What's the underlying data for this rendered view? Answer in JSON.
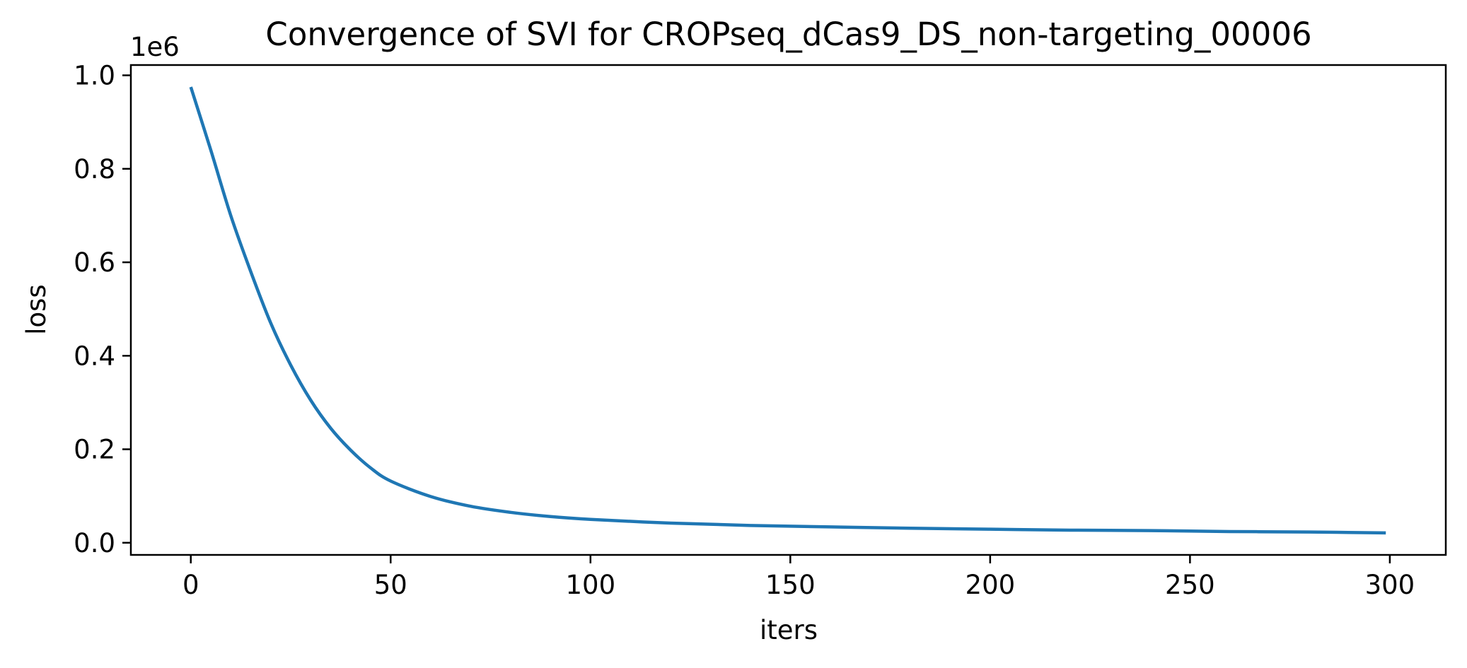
{
  "chart_data": {
    "type": "line",
    "title": "Convergence of SVI for CROPseq_dCas9_DS_non-targeting_00006",
    "xlabel": "iters",
    "ylabel": "loss",
    "y_offset_label": "1e6",
    "xlim": [
      -15,
      314
    ],
    "ylim": [
      -0.026,
      1.022
    ],
    "x_ticks": [
      0,
      50,
      100,
      150,
      200,
      250,
      300
    ],
    "x_tick_labels": [
      "0",
      "50",
      "100",
      "150",
      "200",
      "250",
      "300"
    ],
    "y_ticks": [
      0.0,
      0.2,
      0.4,
      0.6,
      0.8,
      1.0
    ],
    "y_tick_labels": [
      "0.0",
      "0.2",
      "0.4",
      "0.6",
      "0.8",
      "1.0"
    ],
    "grid": false,
    "series_color": "#1f77b4",
    "series": [
      {
        "x": [
          0,
          5,
          10,
          15,
          20,
          25,
          30,
          35,
          40,
          45,
          50,
          60,
          70,
          80,
          90,
          100,
          120,
          140,
          160,
          180,
          200,
          220,
          240,
          260,
          280,
          299
        ],
        "values": [
          0.975,
          0.84,
          0.7,
          0.58,
          0.47,
          0.38,
          0.305,
          0.245,
          0.198,
          0.16,
          0.132,
          0.099,
          0.078,
          0.065,
          0.056,
          0.05,
          0.042,
          0.037,
          0.034,
          0.031,
          0.029,
          0.027,
          0.026,
          0.024,
          0.023,
          0.021
        ]
      }
    ]
  }
}
